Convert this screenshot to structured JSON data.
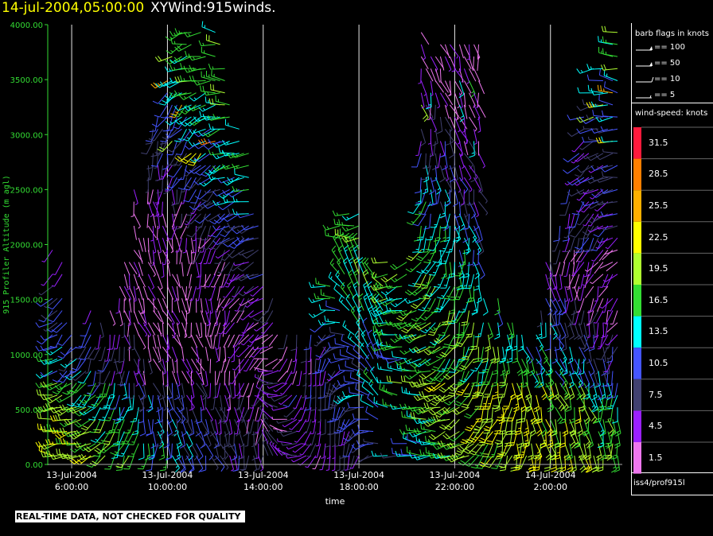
{
  "header": {
    "date_time": "14-jul-2004,05:00:00",
    "product": "XYWind:915winds."
  },
  "footer": {
    "disclaimer": "REAL-TIME DATA, NOT CHECKED FOR QUALITY",
    "source_id": "iss4/prof915l"
  },
  "barb_legend": {
    "title": "barb flags in knots",
    "items": [
      {
        "label": "== 100",
        "kind": "pennant"
      },
      {
        "label": "== 50",
        "kind": "pennant"
      },
      {
        "label": "== 10",
        "kind": "full"
      },
      {
        "label": "== 5",
        "kind": "half"
      }
    ]
  },
  "speed_legend": {
    "title": "wind-speed: knots",
    "bins": [
      {
        "label": "31.5",
        "color": "#ff1a3c"
      },
      {
        "label": "28.5",
        "color": "#ff7f00"
      },
      {
        "label": "25.5",
        "color": "#ffb000"
      },
      {
        "label": "22.5",
        "color": "#ffff00"
      },
      {
        "label": "19.5",
        "color": "#b0ff30"
      },
      {
        "label": "16.5",
        "color": "#33dd33"
      },
      {
        "label": "13.5",
        "color": "#00ffff"
      },
      {
        "label": "10.5",
        "color": "#4455ff"
      },
      {
        "label": "7.5",
        "color": "#404070"
      },
      {
        "label": "4.5",
        "color": "#9a20ff"
      },
      {
        "label": "1.5",
        "color": "#ee77ee"
      }
    ]
  },
  "chart_data": {
    "type": "wind-barb time-height plot",
    "ylabel": "915 Profiler Altitude (m agl)",
    "xlabel": "time",
    "ylim": [
      0,
      4000
    ],
    "y_ticks": [
      "0.00",
      "500.00",
      "1000.00",
      "1500.00",
      "2000.00",
      "2500.00",
      "3000.00",
      "3500.00",
      "4000.00"
    ],
    "x_ticks": [
      {
        "date": "13-Jul-2004",
        "time": "6:00:00"
      },
      {
        "date": "13-Jul-2004",
        "time": "10:00:00"
      },
      {
        "date": "13-Jul-2004",
        "time": "14:00:00"
      },
      {
        "date": "13-Jul-2004",
        "time": "18:00:00"
      },
      {
        "date": "13-Jul-2004",
        "time": "22:00:00"
      },
      {
        "date": "14-Jul-2004",
        "time": "2:00:00"
      }
    ],
    "x_range_hours": [
      5.0,
      29.0
    ],
    "vertical_gridlines": true,
    "barb_columns": "approx. every 12 minutes, gates every ~100 m"
  }
}
